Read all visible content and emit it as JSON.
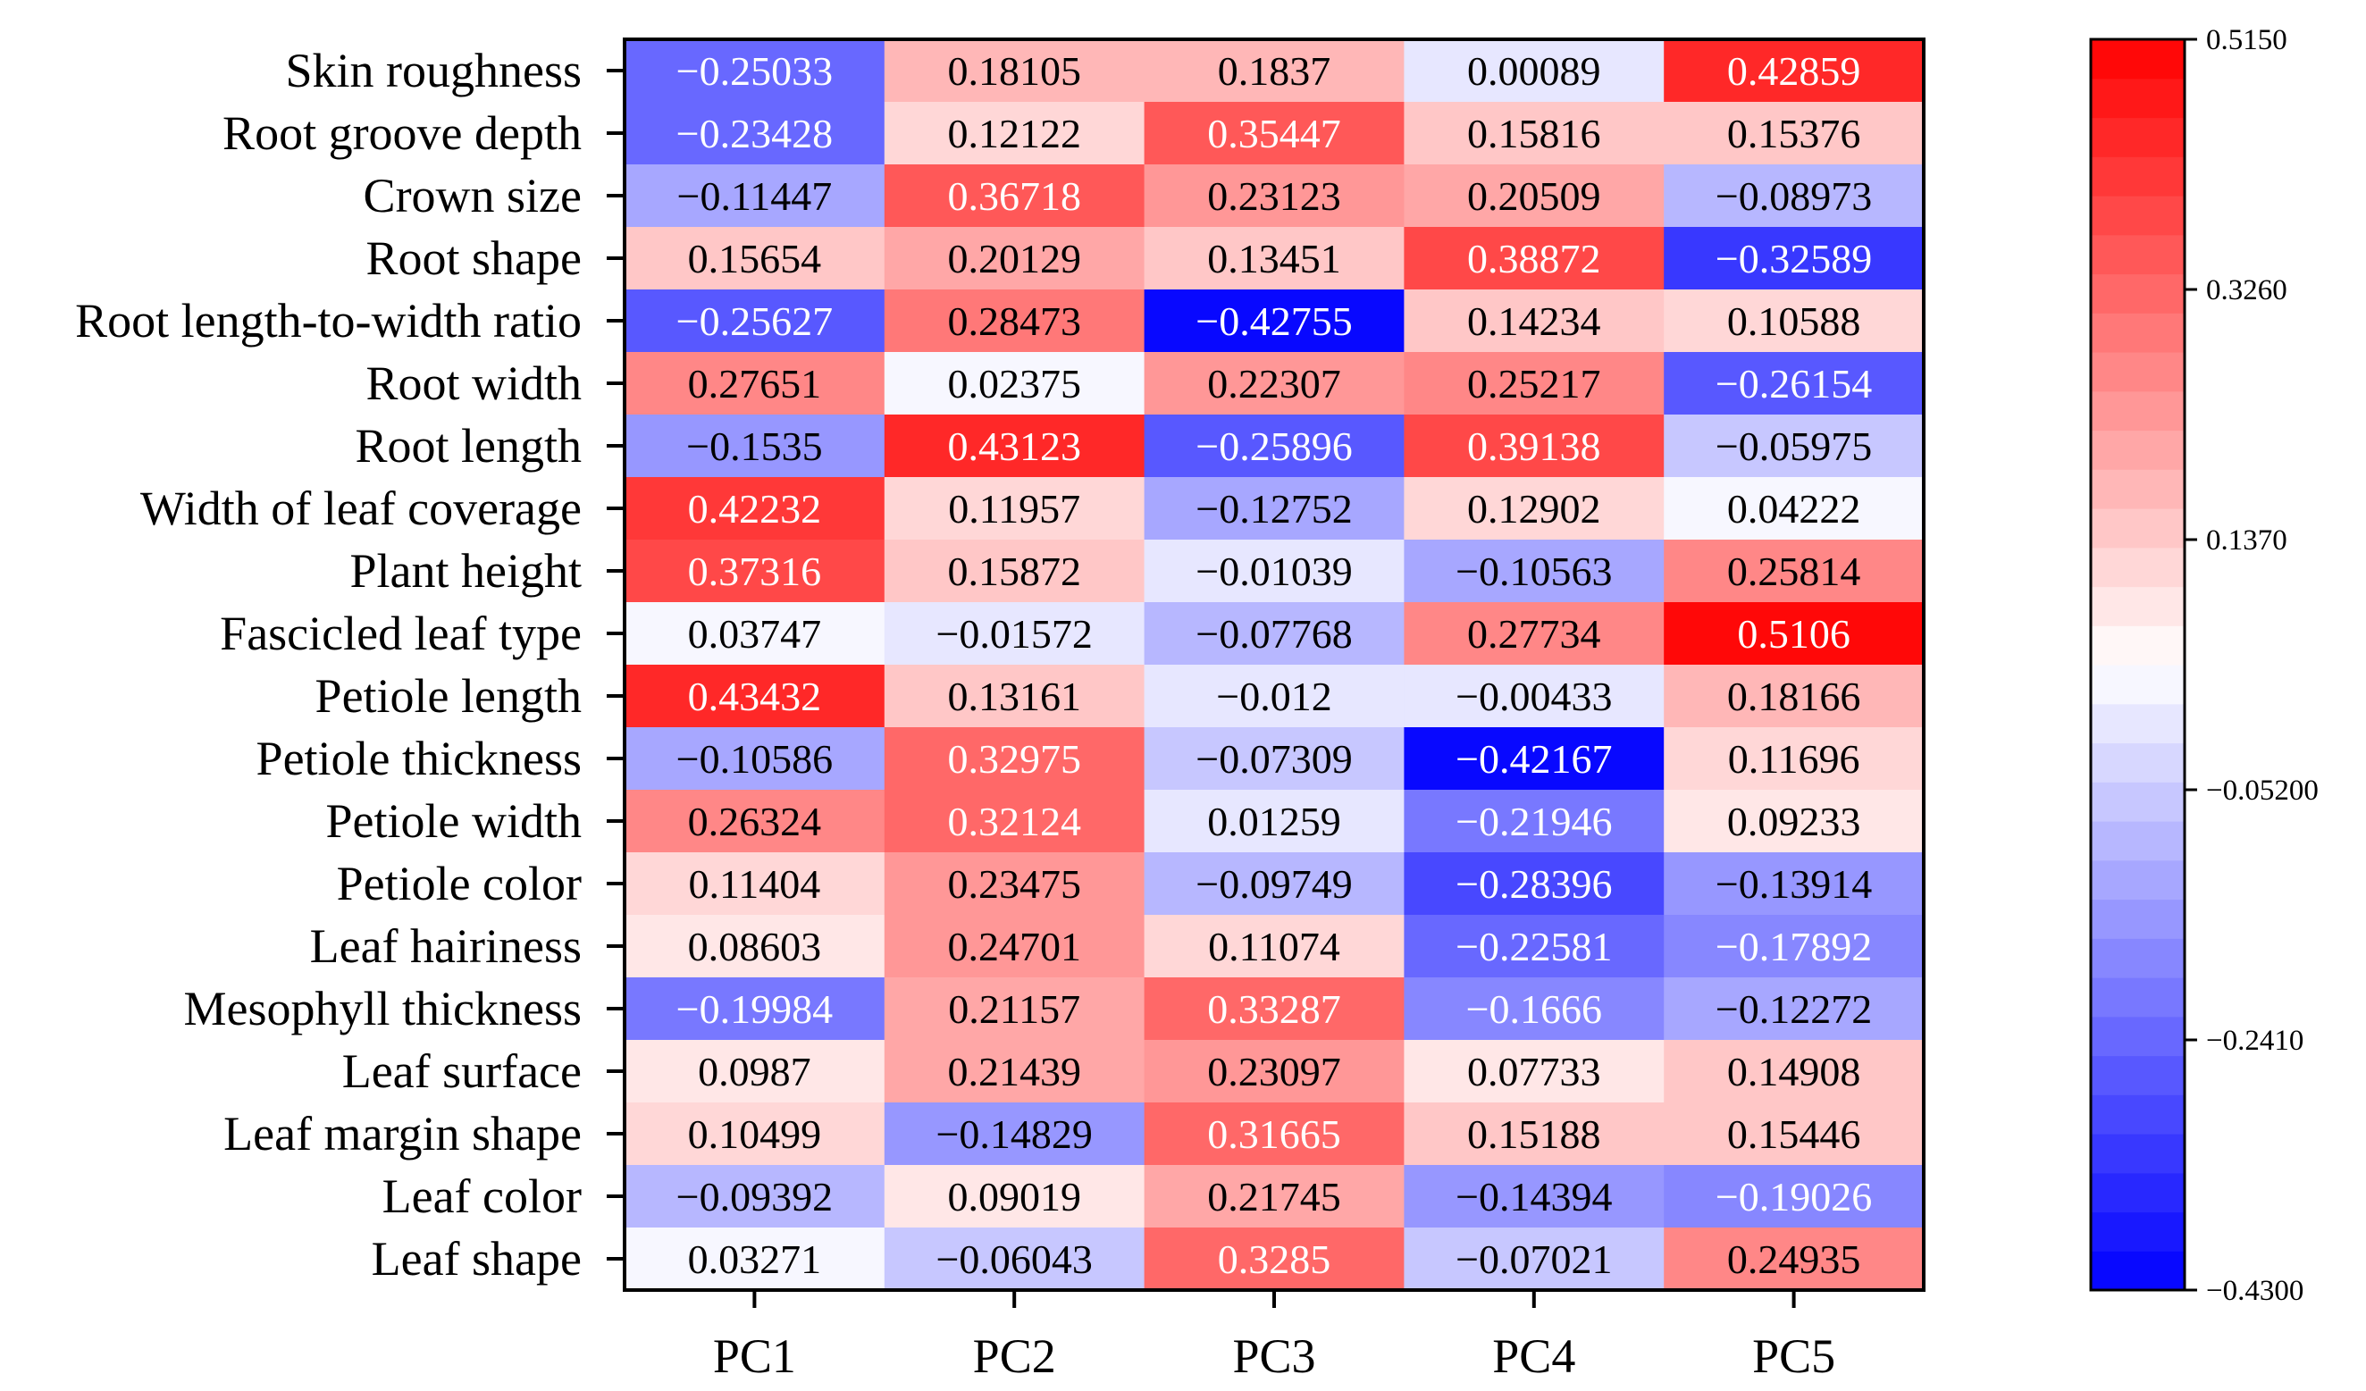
{
  "chart_data": {
    "type": "heatmap",
    "rows": [
      "Skin roughness",
      "Root groove depth",
      "Crown size",
      "Root shape",
      "Root length-to-width ratio",
      "Root width",
      "Root length",
      "Width of leaf coverage",
      "Plant height",
      "Fascicled leaf type",
      "Petiole length",
      "Petiole thickness",
      "Petiole width",
      "Petiole color",
      "Leaf hairiness",
      "Mesophyll thickness",
      "Leaf surface",
      "Leaf margin shape",
      "Leaf color",
      "Leaf shape"
    ],
    "columns": [
      "PC1",
      "PC2",
      "PC3",
      "PC4",
      "PC5"
    ],
    "values": [
      [
        -0.25033,
        0.18105,
        0.1837,
        0.00089,
        0.42859
      ],
      [
        -0.23428,
        0.12122,
        0.35447,
        0.15816,
        0.15376
      ],
      [
        -0.11447,
        0.36718,
        0.23123,
        0.20509,
        -0.08973
      ],
      [
        0.15654,
        0.20129,
        0.13451,
        0.38872,
        -0.32589
      ],
      [
        -0.25627,
        0.28473,
        -0.42755,
        0.14234,
        0.10588
      ],
      [
        0.27651,
        0.02375,
        0.22307,
        0.25217,
        -0.26154
      ],
      [
        -0.1535,
        0.43123,
        -0.25896,
        0.39138,
        -0.05975
      ],
      [
        0.42232,
        0.11957,
        -0.12752,
        0.12902,
        0.04222
      ],
      [
        0.37316,
        0.15872,
        -0.01039,
        -0.10563,
        0.25814
      ],
      [
        0.03747,
        -0.01572,
        -0.07768,
        0.27734,
        0.5106
      ],
      [
        0.43432,
        0.13161,
        -0.012,
        -0.00433,
        0.18166
      ],
      [
        -0.10586,
        0.32975,
        -0.07309,
        -0.42167,
        0.11696
      ],
      [
        0.26324,
        0.32124,
        0.01259,
        -0.21946,
        0.09233
      ],
      [
        0.11404,
        0.23475,
        -0.09749,
        -0.28396,
        -0.13914
      ],
      [
        0.08603,
        0.24701,
        0.11074,
        -0.22581,
        -0.17892
      ],
      [
        -0.19984,
        0.21157,
        0.33287,
        -0.1666,
        -0.12272
      ],
      [
        0.0987,
        0.21439,
        0.23097,
        0.07733,
        0.14908
      ],
      [
        0.10499,
        -0.14829,
        0.31665,
        0.15188,
        0.15446
      ],
      [
        -0.09392,
        0.09019,
        0.21745,
        -0.14394,
        -0.19026
      ],
      [
        0.03271,
        -0.06043,
        0.3285,
        -0.07021,
        0.24935
      ]
    ],
    "value_labels": [
      [
        "−0.25033",
        "0.18105",
        "0.1837",
        "0.00089",
        "0.42859"
      ],
      [
        "−0.23428",
        "0.12122",
        "0.35447",
        "0.15816",
        "0.15376"
      ],
      [
        "−0.11447",
        "0.36718",
        "0.23123",
        "0.20509",
        "−0.08973"
      ],
      [
        "0.15654",
        "0.20129",
        "0.13451",
        "0.38872",
        "−0.32589"
      ],
      [
        "−0.25627",
        "0.28473",
        "−0.42755",
        "0.14234",
        "0.10588"
      ],
      [
        "0.27651",
        "0.02375",
        "0.22307",
        "0.25217",
        "−0.26154"
      ],
      [
        "−0.1535",
        "0.43123",
        "−0.25896",
        "0.39138",
        "−0.05975"
      ],
      [
        "0.42232",
        "0.11957",
        "−0.12752",
        "0.12902",
        "0.04222"
      ],
      [
        "0.37316",
        "0.15872",
        "−0.01039",
        "−0.10563",
        "0.25814"
      ],
      [
        "0.03747",
        "−0.01572",
        "−0.07768",
        "0.27734",
        "0.5106"
      ],
      [
        "0.43432",
        "0.13161",
        "−0.012",
        "−0.00433",
        "0.18166"
      ],
      [
        "−0.10586",
        "0.32975",
        "−0.07309",
        "−0.42167",
        "0.11696"
      ],
      [
        "0.26324",
        "0.32124",
        "0.01259",
        "−0.21946",
        "0.09233"
      ],
      [
        "0.11404",
        "0.23475",
        "−0.09749",
        "−0.28396",
        "−0.13914"
      ],
      [
        "0.08603",
        "0.24701",
        "0.11074",
        "−0.22581",
        "−0.17892"
      ],
      [
        "−0.19984",
        "0.21157",
        "0.33287",
        "−0.1666",
        "−0.12272"
      ],
      [
        "0.0987",
        "0.21439",
        "0.23097",
        "0.07733",
        "0.14908"
      ],
      [
        "0.10499",
        "−0.14829",
        "0.31665",
        "0.15188",
        "0.15446"
      ],
      [
        "−0.09392",
        "0.09019",
        "0.21745",
        "−0.14394",
        "−0.19026"
      ],
      [
        "0.03271",
        "−0.06043",
        "0.3285",
        "−0.07021",
        "0.24935"
      ]
    ],
    "color_scale": {
      "min": -0.43,
      "max": 0.515,
      "mid": 0.0425,
      "low_color": "#0000ff",
      "mid_color": "#ffffff",
      "high_color": "#ff0000",
      "levels": 32
    },
    "colorbar_ticks": [
      {
        "value": 0.515,
        "label": "0.5150"
      },
      {
        "value": 0.326,
        "label": "0.3260"
      },
      {
        "value": 0.137,
        "label": "0.1370"
      },
      {
        "value": -0.052,
        "label": "−0.05200"
      },
      {
        "value": -0.241,
        "label": "−0.2410"
      },
      {
        "value": -0.43,
        "label": "−0.4300"
      }
    ],
    "title": "",
    "xlabel": "",
    "ylabel": ""
  }
}
